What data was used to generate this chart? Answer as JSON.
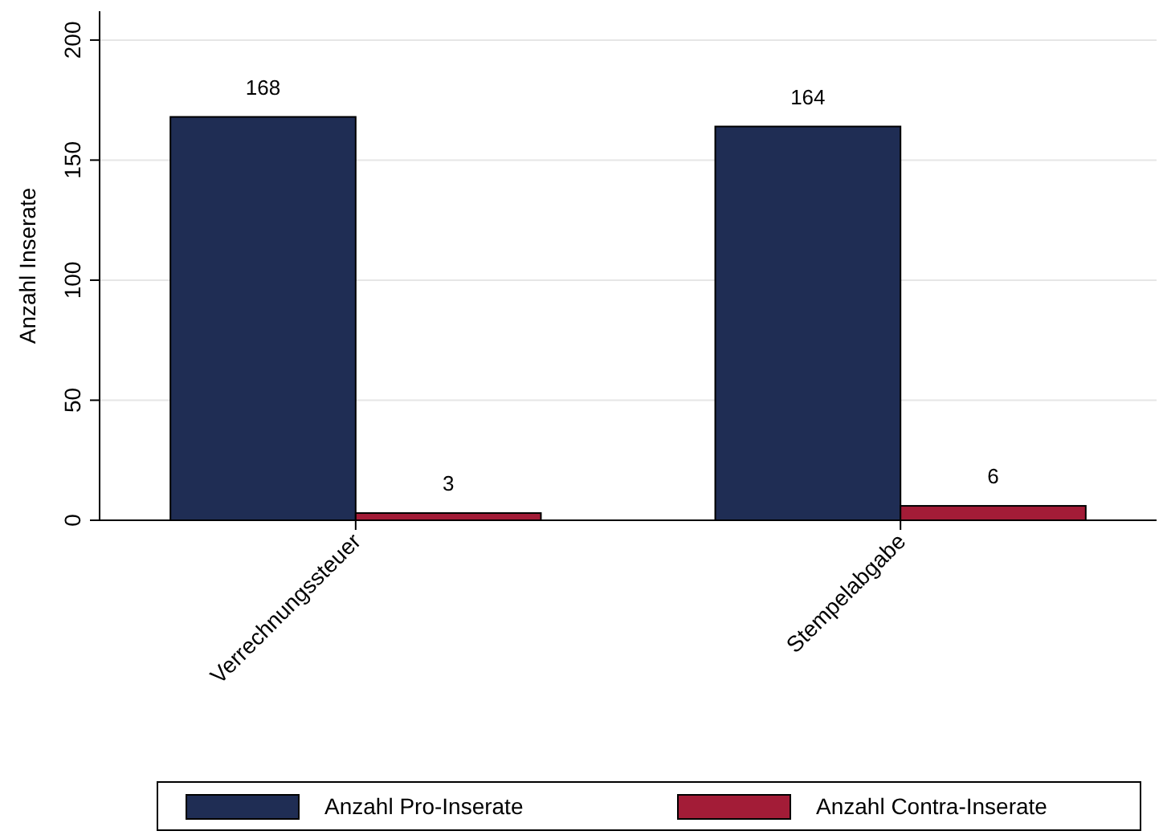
{
  "chart_data": {
    "type": "bar",
    "ylabel": "Anzahl Inserate",
    "categories": [
      "Verrechnungssteuer",
      "Stempelabgabe"
    ],
    "series": [
      {
        "name": "Anzahl Pro-Inserate",
        "color": "#1f2d54",
        "values": [
          168,
          164
        ]
      },
      {
        "name": "Anzahl Contra-Inserate",
        "color": "#a31c37",
        "values": [
          3,
          6
        ]
      }
    ],
    "ylim": [
      0,
      212
    ],
    "yticks": [
      0,
      50,
      100,
      150,
      200
    ],
    "grid": "y",
    "legend": "bottom",
    "data_labels": true
  }
}
